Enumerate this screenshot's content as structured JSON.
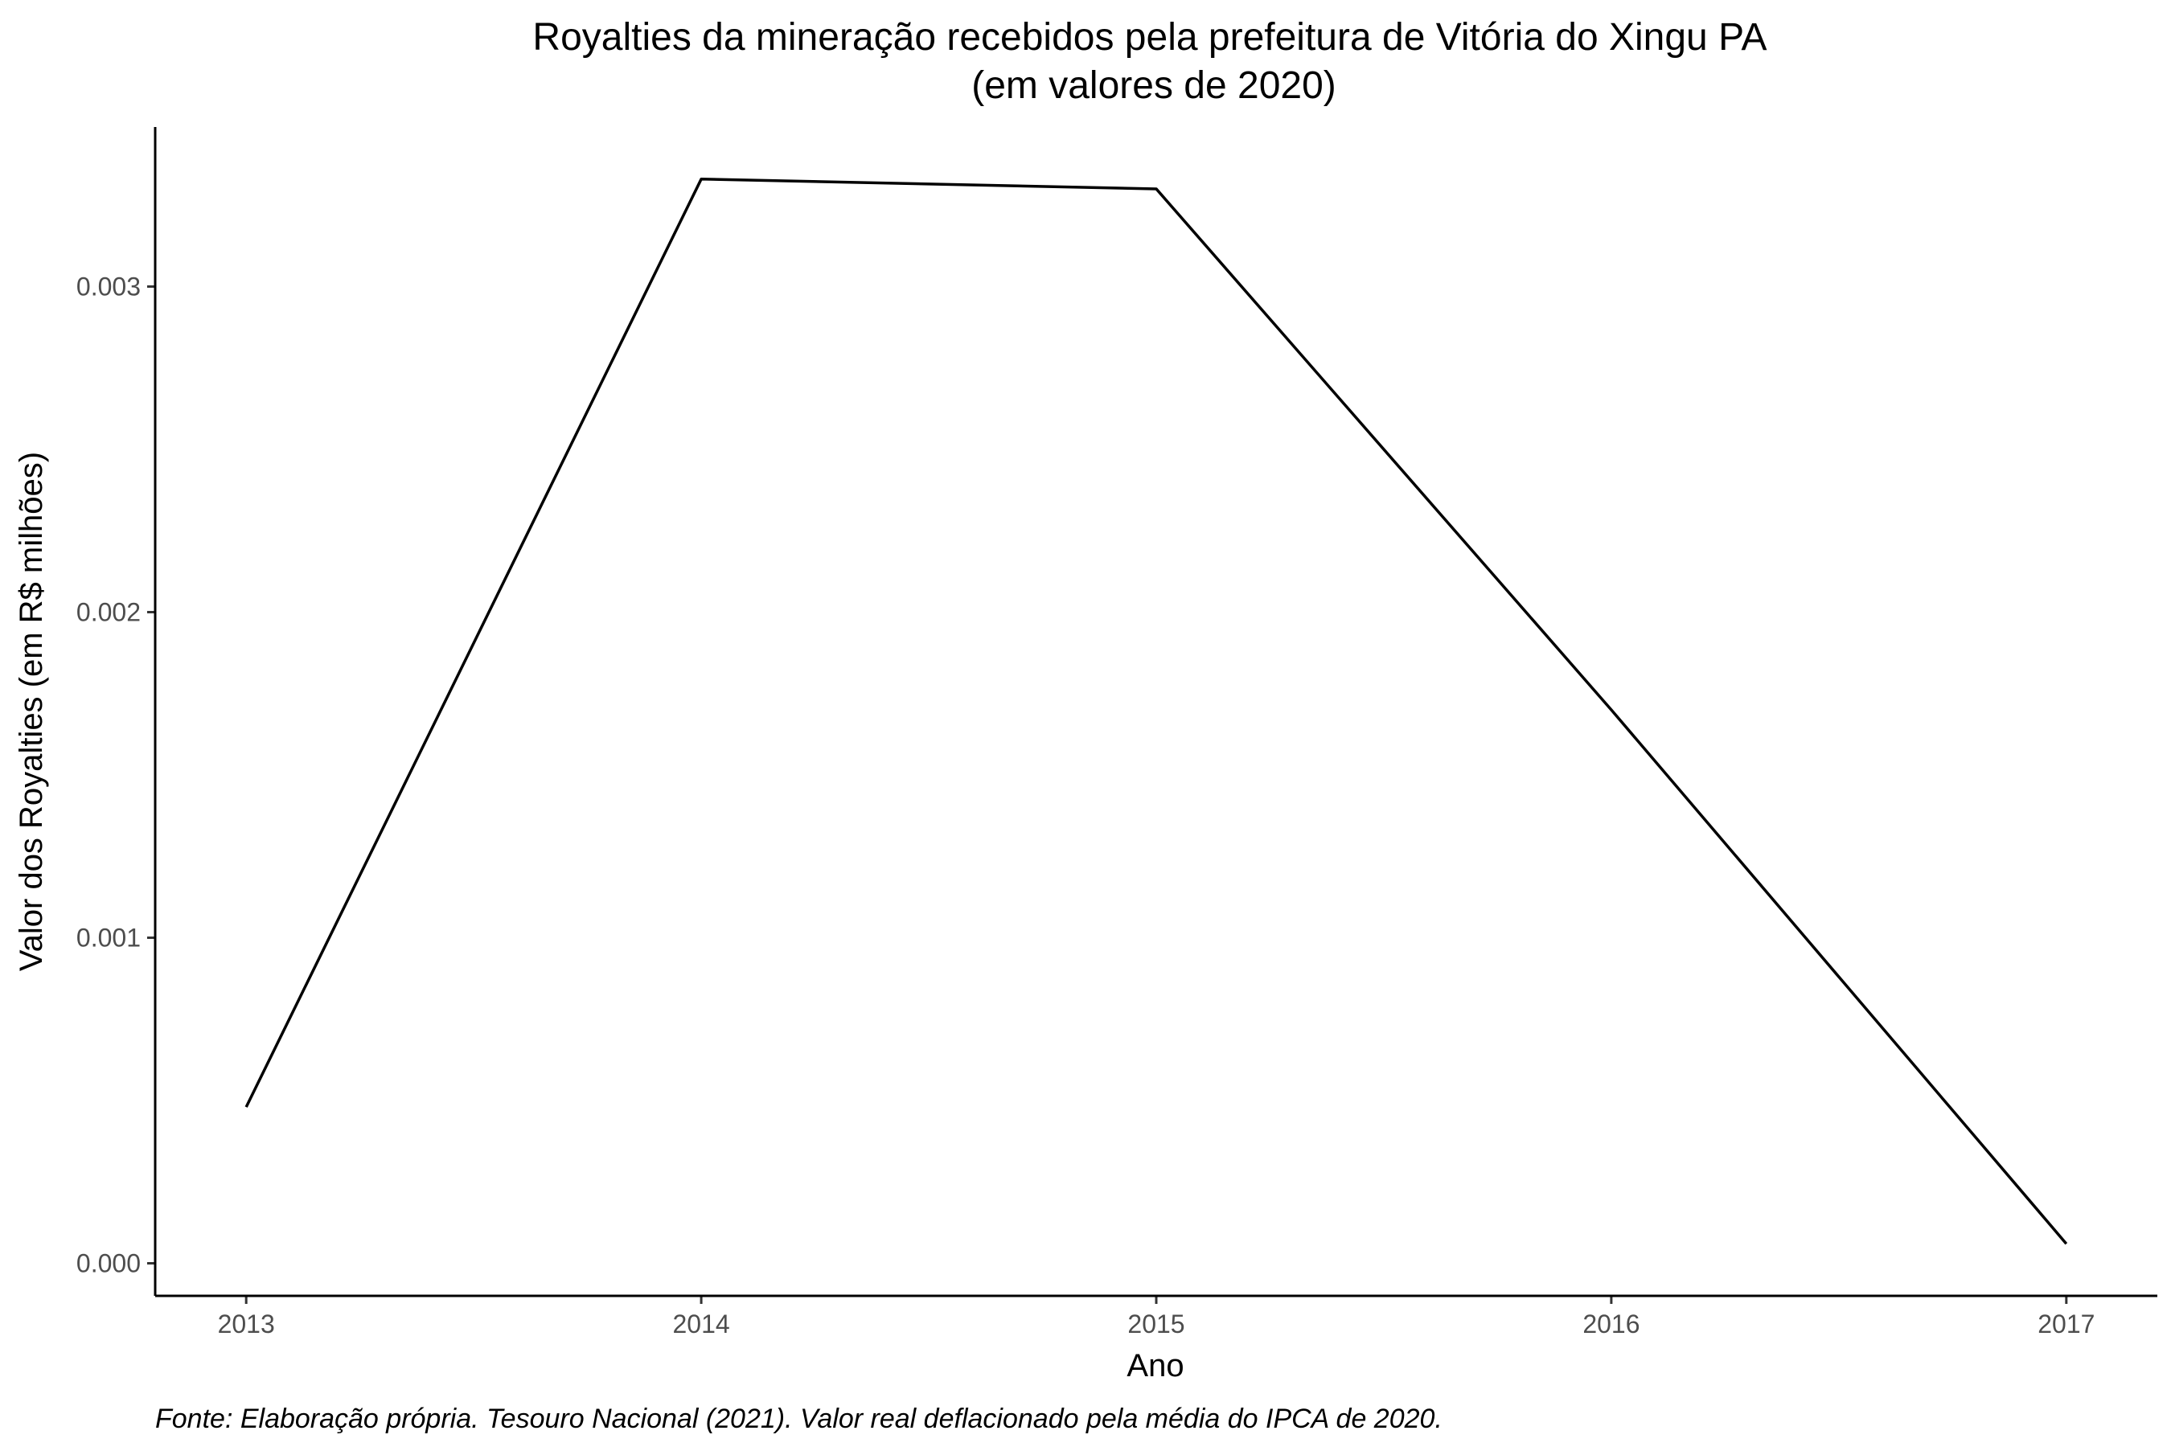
{
  "chart_data": {
    "type": "line",
    "title": "Royalties da mineração recebidos pela prefeitura de Vitória do Xingu PA",
    "subtitle": "(em valores de 2020)",
    "xlabel": "Ano",
    "ylabel": "Valor dos Royalties (em R$ milhões)",
    "caption": "Fonte: Elaboração própria. Tesouro Nacional (2021). Valor real deflacionado pela média do IPCA de 2020.",
    "x": [
      2013,
      2014,
      2015,
      2016,
      2017
    ],
    "series": [
      {
        "values": [
          0.00048,
          0.00333,
          0.0033,
          0.0017,
          6e-05
        ]
      }
    ],
    "x_ticks": [
      "2013",
      "2014",
      "2015",
      "2016",
      "2017"
    ],
    "y_ticks": [
      "0.000",
      "0.001",
      "0.002",
      "0.003"
    ],
    "xlim": [
      2012.8,
      2017.2
    ],
    "ylim": [
      -0.0001,
      0.00349
    ],
    "grid": false,
    "legend": "none",
    "line_color": "#000000"
  }
}
